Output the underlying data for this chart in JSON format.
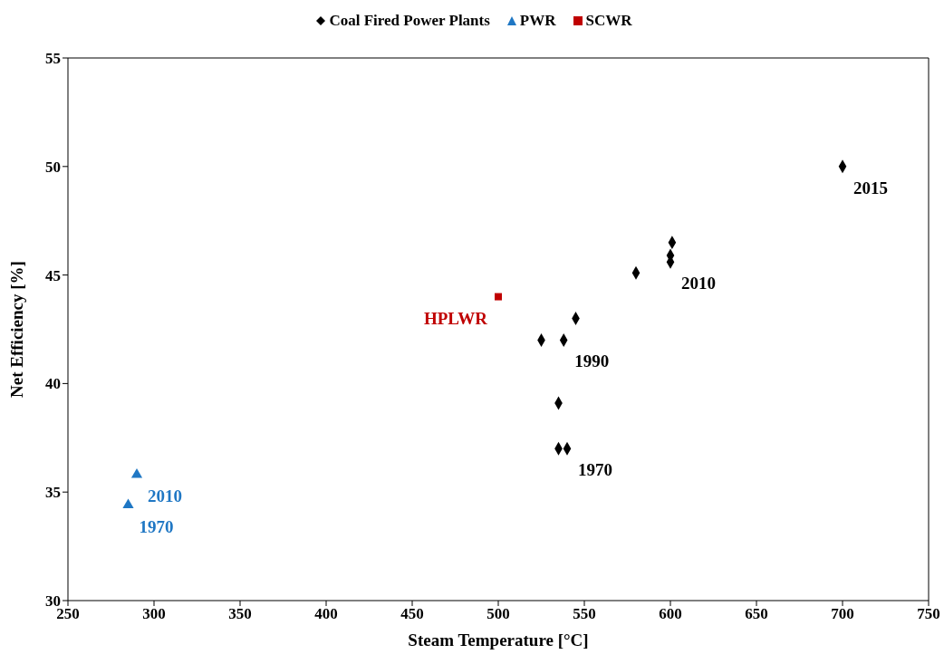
{
  "chart_data": {
    "type": "scatter",
    "xlabel": "Steam Temperature [°C]",
    "ylabel": "Net Efficiency [%]",
    "xlim": [
      250,
      750
    ],
    "xticks": [
      250,
      300,
      350,
      400,
      450,
      500,
      550,
      600,
      650,
      700,
      750
    ],
    "ylim": [
      30,
      55
    ],
    "yticks": [
      30,
      35,
      40,
      45,
      50,
      55
    ],
    "grid": false,
    "legend": "top",
    "annotations": [
      {
        "text": "2015",
        "x": 700,
        "y": 50
      },
      {
        "text": "2010",
        "x": 600,
        "y": 45.6
      },
      {
        "text": "1990",
        "x": 538,
        "y": 42
      },
      {
        "text": "1970",
        "x": 540,
        "y": 37
      },
      {
        "text": "2010",
        "x": 290,
        "y": 35.8
      },
      {
        "text": "1970",
        "x": 285,
        "y": 34.4
      },
      {
        "text": "HPLWR",
        "x": 500,
        "y": 44
      }
    ],
    "series": [
      {
        "name": "Coal Fired Power Plants",
        "color": "#000000",
        "marker": "diamond",
        "x": [
          700,
          601,
          600,
          600,
          580,
          545,
          525,
          538,
          535,
          535,
          540
        ],
        "values": [
          50,
          46.5,
          45.9,
          45.6,
          45.1,
          43,
          42,
          42,
          39.1,
          37,
          37
        ]
      },
      {
        "name": "PWR",
        "color": "#1f77c4",
        "marker": "triangle",
        "x": [
          290,
          285
        ],
        "values": [
          35.8,
          34.4
        ]
      },
      {
        "name": "SCWR",
        "color": "#c00000",
        "marker": "square",
        "x": [
          500
        ],
        "values": [
          44
        ]
      }
    ]
  }
}
